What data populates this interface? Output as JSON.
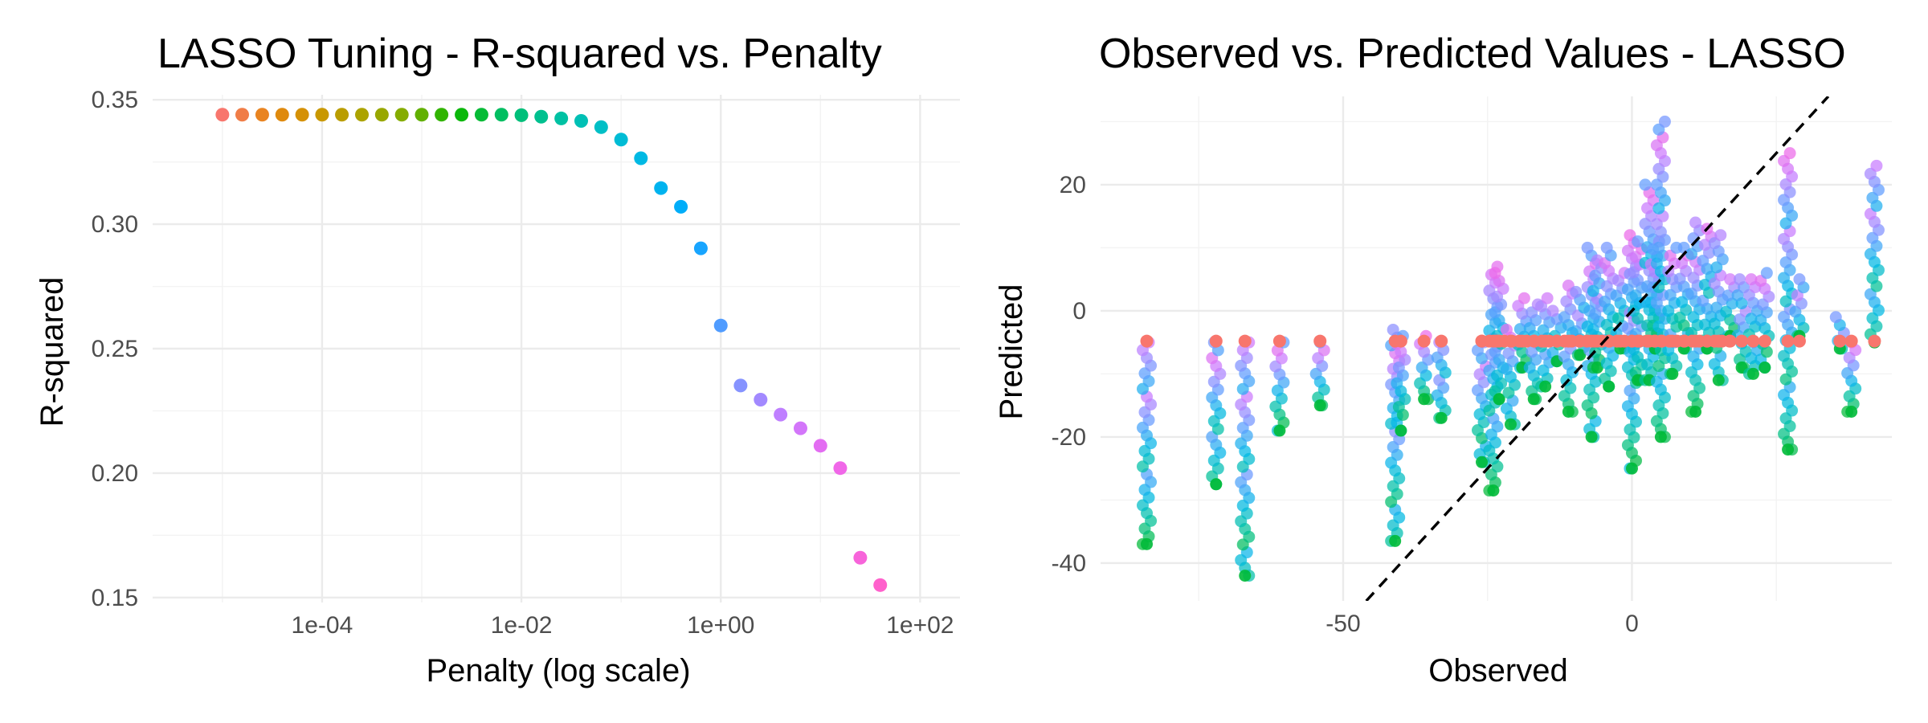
{
  "chart_data": [
    {
      "type": "scatter",
      "title": "LASSO Tuning - R-squared vs. Penalty",
      "xlabel": "Penalty (log scale)",
      "ylabel": "R-squared",
      "x_scale": "log10",
      "xlim_log10": [
        -5.7,
        2.4
      ],
      "ylim": [
        0.148,
        0.352
      ],
      "x_ticks": [
        {
          "v": -4,
          "label": "1e-04"
        },
        {
          "v": -2,
          "label": "1e-02"
        },
        {
          "v": 0,
          "label": "1e+00"
        },
        {
          "v": 2,
          "label": "1e+02"
        }
      ],
      "y_ticks": [
        {
          "v": 0.15,
          "label": "0.15"
        },
        {
          "v": 0.2,
          "label": "0.20"
        },
        {
          "v": 0.25,
          "label": "0.25"
        },
        {
          "v": 0.3,
          "label": "0.30"
        },
        {
          "v": 0.35,
          "label": "0.35"
        }
      ],
      "grid": true,
      "color_gradient": [
        "#f8766d",
        "#e68613",
        "#cd9600",
        "#aba300",
        "#7cae00",
        "#0cb702",
        "#00be67",
        "#00c19a",
        "#00bfc4",
        "#00b8e7",
        "#00a9ff",
        "#8494ff",
        "#c77cff",
        "#ed68ed",
        "#ff61cc"
      ],
      "points": [
        {
          "penalty": 1e-05,
          "r_squared": 0.344
        },
        {
          "penalty": 1.58e-05,
          "r_squared": 0.344
        },
        {
          "penalty": 2.51e-05,
          "r_squared": 0.344
        },
        {
          "penalty": 3.98e-05,
          "r_squared": 0.344
        },
        {
          "penalty": 6.31e-05,
          "r_squared": 0.344
        },
        {
          "penalty": 0.0001,
          "r_squared": 0.344
        },
        {
          "penalty": 0.000158,
          "r_squared": 0.344
        },
        {
          "penalty": 0.000251,
          "r_squared": 0.344
        },
        {
          "penalty": 0.000398,
          "r_squared": 0.344
        },
        {
          "penalty": 0.000631,
          "r_squared": 0.344
        },
        {
          "penalty": 0.001,
          "r_squared": 0.344
        },
        {
          "penalty": 0.00158,
          "r_squared": 0.344
        },
        {
          "penalty": 0.00251,
          "r_squared": 0.344
        },
        {
          "penalty": 0.00398,
          "r_squared": 0.344
        },
        {
          "penalty": 0.00631,
          "r_squared": 0.344
        },
        {
          "penalty": 0.01,
          "r_squared": 0.3438
        },
        {
          "penalty": 0.0158,
          "r_squared": 0.3432
        },
        {
          "penalty": 0.0251,
          "r_squared": 0.3425
        },
        {
          "penalty": 0.0398,
          "r_squared": 0.3415
        },
        {
          "penalty": 0.0631,
          "r_squared": 0.339
        },
        {
          "penalty": 0.1,
          "r_squared": 0.334
        },
        {
          "penalty": 0.158,
          "r_squared": 0.3265
        },
        {
          "penalty": 0.251,
          "r_squared": 0.3145
        },
        {
          "penalty": 0.398,
          "r_squared": 0.307
        },
        {
          "penalty": 0.631,
          "r_squared": 0.2903
        },
        {
          "penalty": 1.0,
          "r_squared": 0.2593
        },
        {
          "penalty": 1.58,
          "r_squared": 0.2352
        },
        {
          "penalty": 2.51,
          "r_squared": 0.2295
        },
        {
          "penalty": 3.98,
          "r_squared": 0.2235
        },
        {
          "penalty": 6.31,
          "r_squared": 0.218
        },
        {
          "penalty": 10.0,
          "r_squared": 0.211
        },
        {
          "penalty": 15.8,
          "r_squared": 0.202
        },
        {
          "penalty": 25.1,
          "r_squared": 0.166
        },
        {
          "penalty": 39.8,
          "r_squared": 0.155
        }
      ]
    },
    {
      "type": "scatter",
      "title": "Observed vs. Predicted Values - LASSO",
      "xlabel": "Observed",
      "ylabel": "Predicted",
      "xlim": [
        -92,
        45
      ],
      "ylim": [
        -46,
        34
      ],
      "x_ticks": [
        {
          "v": -50,
          "label": "-50"
        },
        {
          "v": 0,
          "label": "0"
        }
      ],
      "y_ticks": [
        {
          "v": -40,
          "label": "-40"
        },
        {
          "v": -20,
          "label": "-20"
        },
        {
          "v": 0,
          "label": "0"
        },
        {
          "v": 20,
          "label": "20"
        }
      ],
      "grid": true,
      "reference_line": {
        "slope": 1,
        "intercept": 0,
        "style": "dashed",
        "color": "#000000"
      },
      "color_gradient": [
        "#00ba38",
        "#00c19a",
        "#00b8e7",
        "#619cff",
        "#c77cff",
        "#f564e3"
      ],
      "floor_color": "#f8766d",
      "floor_prediction": -4.8,
      "columns": [
        {
          "observed": -84,
          "pred_min": -37,
          "pred_max": -5
        },
        {
          "observed": -72,
          "pred_min": -27.5,
          "pred_max": -5
        },
        {
          "observed": -67,
          "pred_min": -42,
          "pred_max": -5
        },
        {
          "observed": -61,
          "pred_min": -19,
          "pred_max": -5
        },
        {
          "observed": -54,
          "pred_min": -15,
          "pred_max": -5
        },
        {
          "observed": -41,
          "pred_min": -36.5,
          "pred_max": -3
        },
        {
          "observed": -40,
          "pred_min": -19,
          "pred_max": -4
        },
        {
          "observed": -36,
          "pred_min": -14,
          "pred_max": -4
        },
        {
          "observed": -33,
          "pred_min": -17,
          "pred_max": -5
        },
        {
          "observed": -26,
          "pred_min": -24,
          "pred_max": -5
        },
        {
          "observed": -24,
          "pred_min": -28.5,
          "pred_max": 7
        },
        {
          "observed": -23,
          "pred_min": -14,
          "pred_max": 6
        },
        {
          "observed": -21,
          "pred_min": -18,
          "pred_max": -3
        },
        {
          "observed": -19,
          "pred_min": -9,
          "pred_max": 2
        },
        {
          "observed": -17,
          "pred_min": -14,
          "pred_max": 1
        },
        {
          "observed": -15,
          "pred_min": -12,
          "pred_max": 2
        },
        {
          "observed": -13,
          "pred_min": -8,
          "pred_max": 0
        },
        {
          "observed": -11,
          "pred_min": -16,
          "pred_max": 4
        },
        {
          "observed": -9,
          "pred_min": -7,
          "pred_max": 3
        },
        {
          "observed": -7,
          "pred_min": -20,
          "pred_max": 10
        },
        {
          "observed": -6,
          "pred_min": -9,
          "pred_max": 8
        },
        {
          "observed": -4,
          "pred_min": -12,
          "pred_max": 10
        },
        {
          "observed": -2,
          "pred_min": -6,
          "pred_max": 6
        },
        {
          "observed": 0,
          "pred_min": -25,
          "pred_max": 12
        },
        {
          "observed": 1,
          "pred_min": -11,
          "pred_max": 11
        },
        {
          "observed": 3,
          "pred_min": -11,
          "pred_max": 20
        },
        {
          "observed": 4,
          "pred_min": -6,
          "pred_max": 11
        },
        {
          "observed": 5,
          "pred_min": -20,
          "pred_max": 30
        },
        {
          "observed": 7,
          "pred_min": -10,
          "pred_max": 10
        },
        {
          "observed": 9,
          "pred_min": -6,
          "pred_max": 10
        },
        {
          "observed": 11,
          "pred_min": -16,
          "pred_max": 14
        },
        {
          "observed": 13,
          "pred_min": -6,
          "pred_max": 13
        },
        {
          "observed": 15,
          "pred_min": -11,
          "pred_max": 12
        },
        {
          "observed": 17,
          "pred_min": -4,
          "pred_max": 5
        },
        {
          "observed": 19,
          "pred_min": -9,
          "pred_max": 5
        },
        {
          "observed": 21,
          "pred_min": -10,
          "pred_max": 5
        },
        {
          "observed": 23,
          "pred_min": -9,
          "pred_max": 6
        },
        {
          "observed": 27,
          "pred_min": -22,
          "pred_max": 25
        },
        {
          "observed": 29,
          "pred_min": -4,
          "pred_max": 5
        },
        {
          "observed": 36,
          "pred_min": -6,
          "pred_max": -1
        },
        {
          "observed": 38,
          "pred_min": -16,
          "pred_max": -5
        },
        {
          "observed": 42,
          "pred_min": -5,
          "pred_max": 23
        }
      ]
    }
  ]
}
